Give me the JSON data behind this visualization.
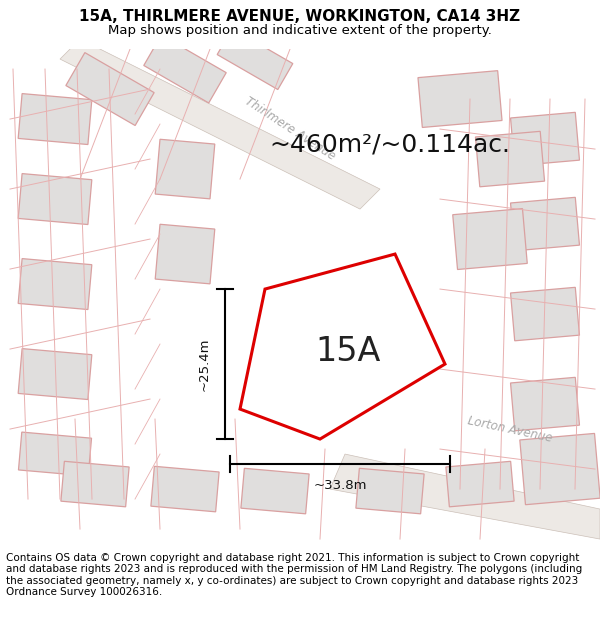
{
  "title": "15A, THIRLMERE AVENUE, WORKINGTON, CA14 3HZ",
  "subtitle": "Map shows position and indicative extent of the property.",
  "footer": "Contains OS data © Crown copyright and database right 2021. This information is subject to Crown copyright and database rights 2023 and is reproduced with the permission of HM Land Registry. The polygons (including the associated geometry, namely x, y co-ordinates) are subject to Crown copyright and database rights 2023 Ordnance Survey 100026316.",
  "area_label": "~460m²/~0.114ac.",
  "width_label": "~33.8m",
  "height_label": "~25.4m",
  "property_label": "15A",
  "map_bg": "#f7f5f2",
  "polygon_color": "#dd0000",
  "street_label_1": "Thirlmere Avenue",
  "street_label_2": "Lorton Avenue",
  "title_fontsize": 11,
  "subtitle_fontsize": 9.5,
  "footer_fontsize": 7.5,
  "area_label_fontsize": 18,
  "property_label_fontsize": 24,
  "building_fill": "#e0dedd",
  "building_edge": "#d9a0a0",
  "plot_line_color": "#e8b0b0",
  "road_fill": "#eeebe8",
  "road_edge": "#d4c0c0"
}
